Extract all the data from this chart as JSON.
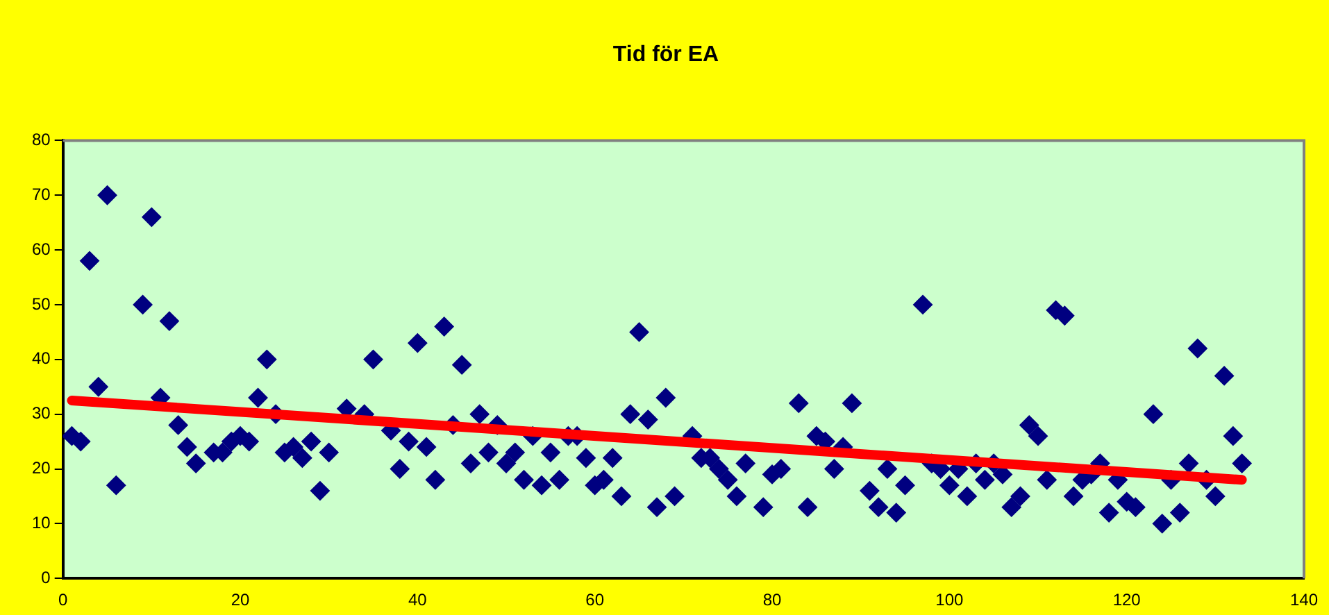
{
  "chart_data": {
    "type": "scatter",
    "title": "Tid för EA",
    "grid": false,
    "legend": false,
    "xlim": [
      0,
      140
    ],
    "xticks": [
      0,
      20,
      40,
      60,
      80,
      100,
      120,
      140
    ],
    "ylim": [
      0,
      80
    ],
    "yticks": [
      0,
      10,
      20,
      30,
      40,
      50,
      60,
      70,
      80
    ],
    "series": [
      {
        "marker": "diamond",
        "color": "#000080",
        "x": [
          1,
          2,
          3,
          4,
          5,
          6,
          9,
          10,
          11,
          12,
          13,
          14,
          15,
          17,
          18,
          19,
          20,
          21,
          22,
          23,
          24,
          25,
          26,
          27,
          28,
          29,
          30,
          32,
          34,
          35,
          37,
          38,
          39,
          40,
          41,
          42,
          43,
          44,
          45,
          46,
          47,
          48,
          49,
          50,
          51,
          52,
          53,
          54,
          55,
          56,
          57,
          58,
          59,
          60,
          61,
          62,
          63,
          64,
          65,
          66,
          67,
          68,
          69,
          71,
          72,
          73,
          74,
          75,
          76,
          77,
          79,
          80,
          81,
          83,
          84,
          85,
          86,
          87,
          88,
          89,
          91,
          92,
          93,
          94,
          95,
          97,
          98,
          99,
          100,
          101,
          102,
          103,
          104,
          105,
          106,
          107,
          108,
          109,
          110,
          111,
          112,
          113,
          114,
          115,
          116,
          117,
          118,
          119,
          120,
          121,
          123,
          124,
          125,
          126,
          127,
          128,
          129,
          130,
          131,
          132,
          133
        ],
        "values": [
          26,
          25,
          58,
          35,
          70,
          17,
          50,
          66,
          33,
          47,
          28,
          24,
          21,
          23,
          23,
          25,
          26,
          25,
          33,
          40,
          30,
          23,
          24,
          22,
          25,
          16,
          23,
          31,
          30,
          40,
          27,
          20,
          25,
          43,
          24,
          18,
          46,
          28,
          39,
          21,
          30,
          23,
          28,
          21,
          23,
          18,
          26,
          17,
          23,
          18,
          26,
          26,
          22,
          17,
          18,
          22,
          15,
          30,
          45,
          29,
          13,
          33,
          15,
          26,
          22,
          22,
          20,
          18,
          15,
          21,
          13,
          19,
          20,
          32,
          13,
          26,
          25,
          20,
          24,
          32,
          16,
          13,
          20,
          12,
          17,
          50,
          21,
          20,
          17,
          20,
          15,
          21,
          18,
          21,
          19,
          13,
          15,
          28,
          26,
          18,
          49,
          48,
          15,
          18,
          19,
          21,
          12,
          18,
          14,
          13,
          30,
          10,
          18,
          12,
          21,
          42,
          18,
          15,
          37,
          26,
          21
        ]
      },
      {
        "type": "line",
        "color": "#ff0000",
        "x": [
          1,
          133
        ],
        "values": [
          32.5,
          18
        ]
      }
    ]
  }
}
